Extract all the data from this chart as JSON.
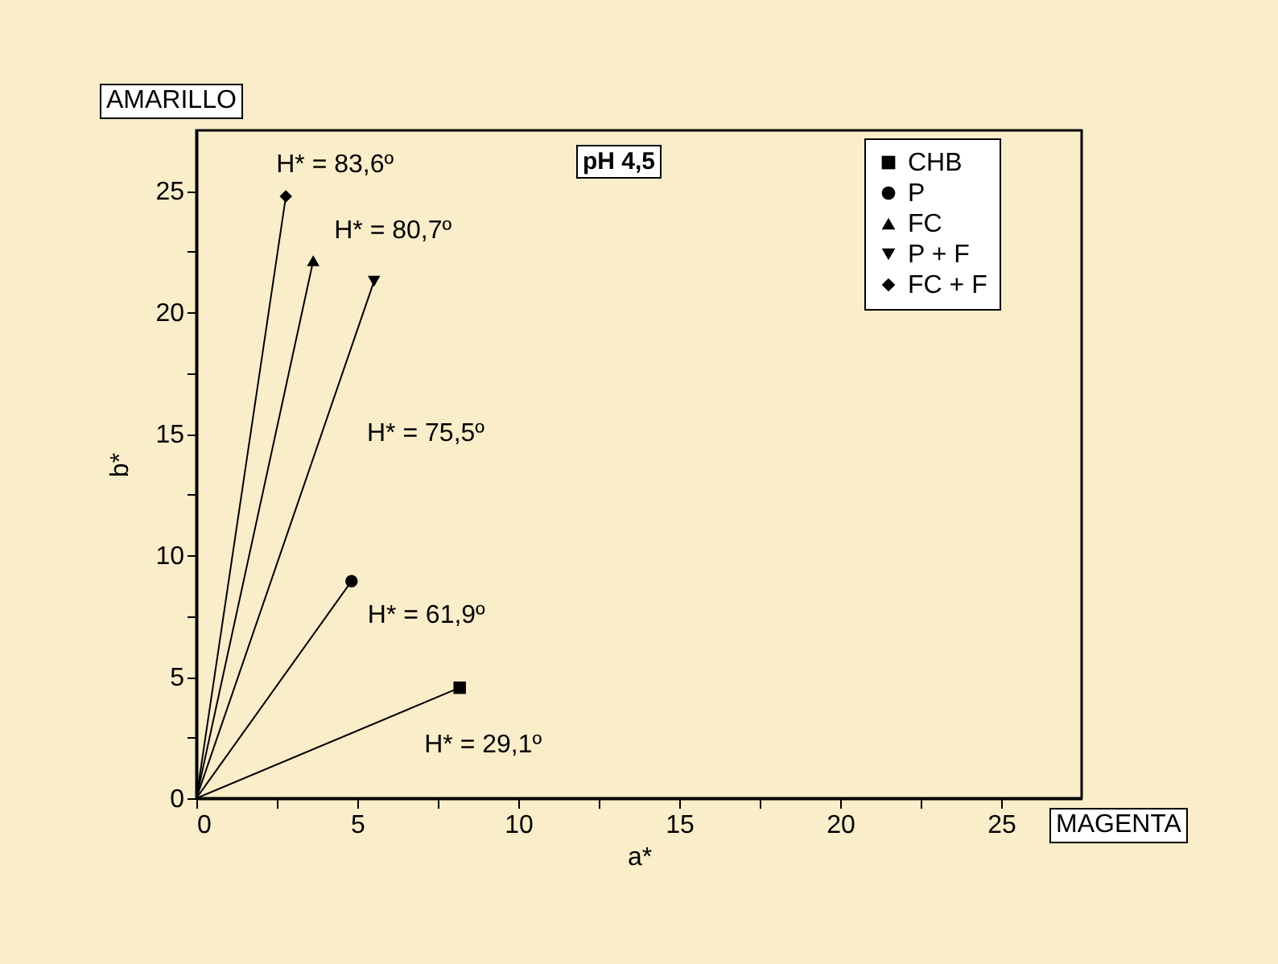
{
  "chart_data": {
    "type": "line",
    "title": "pH 4,5",
    "xlabel": "a*",
    "ylabel": "b*",
    "xlim": [
      0,
      27.5
    ],
    "ylim": [
      0,
      27.5
    ],
    "xticks": [
      0,
      {
        "value": 2.5,
        "label": null
      },
      5,
      {
        "value": 7.5,
        "label": null
      },
      10,
      {
        "value": 12.5,
        "label": null
      },
      15,
      {
        "value": 17.5,
        "label": null
      },
      20,
      {
        "value": 22.5,
        "label": null
      },
      25
    ],
    "yticks": [
      0,
      {
        "value": 2.5,
        "label": null
      },
      5,
      {
        "value": 7.5,
        "label": null
      },
      10,
      {
        "value": 12.5,
        "label": null
      },
      15,
      {
        "value": 17.5,
        "label": null
      },
      20,
      {
        "value": 22.5,
        "label": null
      },
      25
    ],
    "grid": false,
    "legend": "top right",
    "line_style": "solid",
    "series": [
      {
        "name": "CHB",
        "color": "#000000",
        "marker": "square",
        "x": [
          0,
          8.18
        ],
        "values": [
          0,
          4.55
        ]
      },
      {
        "name": "P",
        "color": "#000000",
        "marker": "circle",
        "x": [
          0,
          4.82
        ],
        "values": [
          0,
          8.94
        ]
      },
      {
        "name": "FC",
        "color": "#000000",
        "marker": "triangle",
        "x": [
          0,
          3.63
        ],
        "values": [
          0,
          22.13
        ]
      },
      {
        "name": "P + F",
        "color": "#000000",
        "marker": "triangle-down",
        "x": [
          0,
          5.52
        ],
        "values": [
          0,
          21.29
        ]
      },
      {
        "name": "FC + F",
        "color": "#000000",
        "marker": "diamond",
        "x": [
          0,
          2.78
        ],
        "values": [
          0,
          24.78
        ]
      }
    ],
    "annotations": [
      {
        "text": "H* = 83,6º",
        "x": 2.78,
        "y": 24.78
      },
      {
        "text": "H* = 80,7º",
        "x": 3.63,
        "y": 22.13
      },
      "H* = 75,5º",
      {
        "text": "H* = 61,9º",
        "x": 4.82,
        "y": 8.94
      },
      {
        "text": "H* = 29,1º",
        "x": 8.18,
        "y": 4.55
      },
      "AMARILLO",
      "MAGENTA"
    ]
  }
}
